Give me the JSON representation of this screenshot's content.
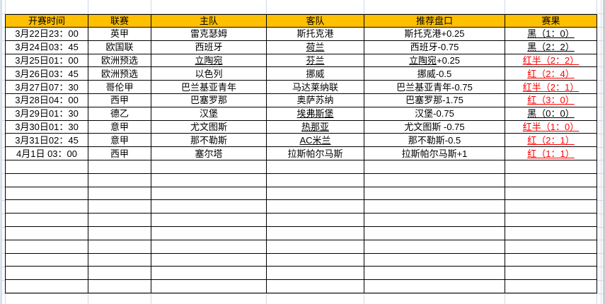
{
  "colors": {
    "header_bg": "#FFC000",
    "result_red": "#FF0000",
    "text": "#000000",
    "cell_border": "#000000",
    "sheet_grid": "#CFD9E8"
  },
  "table": {
    "headers": [
      "开赛时间",
      "联赛",
      "主队",
      "客队",
      "推荐盘口",
      "赛果"
    ],
    "rows": [
      {
        "time": "3月22日23：00",
        "league": "英甲",
        "home": "雷克瑟姆",
        "away": "斯托克港",
        "handicap": "斯托克港+0.25",
        "result": "黑（1：0）",
        "result_color": "black"
      },
      {
        "time": "3月24日03：45",
        "league": "欧国联",
        "home": "西班牙",
        "away": "荷兰",
        "away_underline": true,
        "handicap": "西班牙-0.75",
        "result": "黑（2：2）",
        "result_color": "black"
      },
      {
        "time": "3月25日01：00",
        "league": "欧洲预选",
        "home": "立陶宛",
        "home_underline": true,
        "away": "芬兰",
        "away_underline": true,
        "handicap": "立陶宛+0.25",
        "handicap_underline_prefix": "立陶宛",
        "result": "红半（2：2）",
        "result_color": "red"
      },
      {
        "time": "3月26日03：45",
        "league": "欧洲预选",
        "home": "以色列",
        "away": "挪威",
        "handicap": "挪威-0.5",
        "result": "红（2：4）",
        "result_color": "red"
      },
      {
        "time": "3月27日07：30",
        "league": "哥伦甲",
        "home": "巴兰基亚青年",
        "away": "马达莱纳联",
        "handicap": "巴兰基亚青年-0.75",
        "result": "红半（2：1）",
        "result_color": "red"
      },
      {
        "time": "3月28日04：00",
        "league": "西甲",
        "home": "巴塞罗那",
        "away": "奥萨苏纳",
        "handicap": "巴塞罗那-1.75",
        "result": "红（3：0）",
        "result_color": "red"
      },
      {
        "time": "3月29日01：30",
        "league": "德乙",
        "home": "汉堡",
        "away": "埃弗斯堡",
        "away_underline": true,
        "handicap": "汉堡-0.75",
        "result": "黑（0：0）",
        "result_color": "black"
      },
      {
        "time": "3月30日01：30",
        "league": "意甲",
        "home": "尤文图斯",
        "away": "热那亚",
        "away_underline": true,
        "handicap": "尤文图斯 -0.75",
        "result": "红半（1：0）",
        "result_color": "red"
      },
      {
        "time": "3月31日02：45",
        "league": "意甲",
        "home": "那不勒斯",
        "away": "AC米兰",
        "away_underline": true,
        "handicap": "那不勒斯-0.5",
        "result": "红（2：1）",
        "result_color": "red"
      },
      {
        "time": "4月1日 03：00",
        "league": "西甲",
        "home": "塞尔塔",
        "away": "拉斯帕尔马斯",
        "handicap": "拉斯帕尔马斯+1",
        "result": "红（1：1）",
        "result_color": "red"
      }
    ],
    "empty_row_count": 10
  }
}
